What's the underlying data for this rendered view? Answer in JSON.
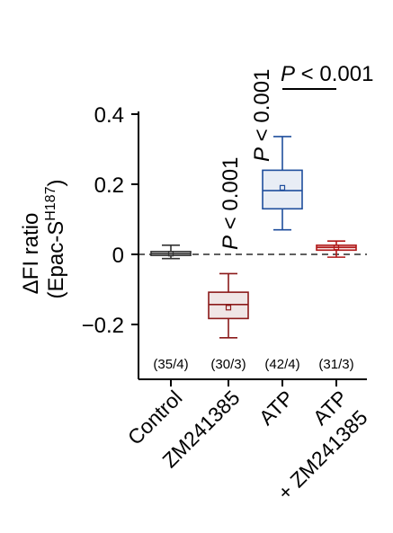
{
  "chart_data": {
    "type": "box",
    "ylabel_line1": "ΔFI ratio",
    "ylabel_line2_prefix": "(Epac-S",
    "ylabel_line2_sup": "H187",
    "ylabel_line2_suffix": ")",
    "ylim": [
      -0.36,
      0.42
    ],
    "yticks": [
      -0.2,
      0,
      0.2,
      0.4
    ],
    "ytick_labels": [
      "−0.2",
      "0",
      "0.2",
      "0.4"
    ],
    "reference_line": 0,
    "categories": [
      {
        "label": "Control",
        "label_line2": ""
      },
      {
        "label": "ZM241385",
        "label_line2": ""
      },
      {
        "label": "ATP",
        "label_line2": ""
      },
      {
        "label": "ATP",
        "label_line2": "+ ZM241385"
      }
    ],
    "n_labels": [
      "(35/4)",
      "(30/3)",
      "(42/4)",
      "(31/3)"
    ],
    "boxes": [
      {
        "q1": -0.003,
        "median": 0.002,
        "q3": 0.008,
        "whisker_low": -0.012,
        "whisker_high": 0.026,
        "mean": 0.002,
        "color": "#333333",
        "fill": "#ffffff"
      },
      {
        "q1": -0.183,
        "median": -0.143,
        "q3": -0.108,
        "whisker_low": -0.238,
        "whisker_high": -0.055,
        "mean": -0.152,
        "color": "#8b1a1a",
        "fill": "#f0e6e6"
      },
      {
        "q1": 0.13,
        "median": 0.182,
        "q3": 0.24,
        "whisker_low": 0.07,
        "whisker_high": 0.336,
        "mean": 0.19,
        "color": "#1f4e9c",
        "fill": "#e8edf5"
      },
      {
        "q1": 0.012,
        "median": 0.02,
        "q3": 0.026,
        "whisker_low": -0.008,
        "whisker_high": 0.038,
        "mean": 0.02,
        "color": "#b01818",
        "fill": "#f5dede"
      }
    ],
    "significance": [
      {
        "text": "P < 0.001",
        "type": "vertical",
        "category_index": 1
      },
      {
        "text": "P < 0.001",
        "type": "vertical",
        "category_index": 2
      },
      {
        "text": "P < 0.001",
        "type": "bracket",
        "from_index": 2,
        "to_index": 3
      }
    ]
  }
}
